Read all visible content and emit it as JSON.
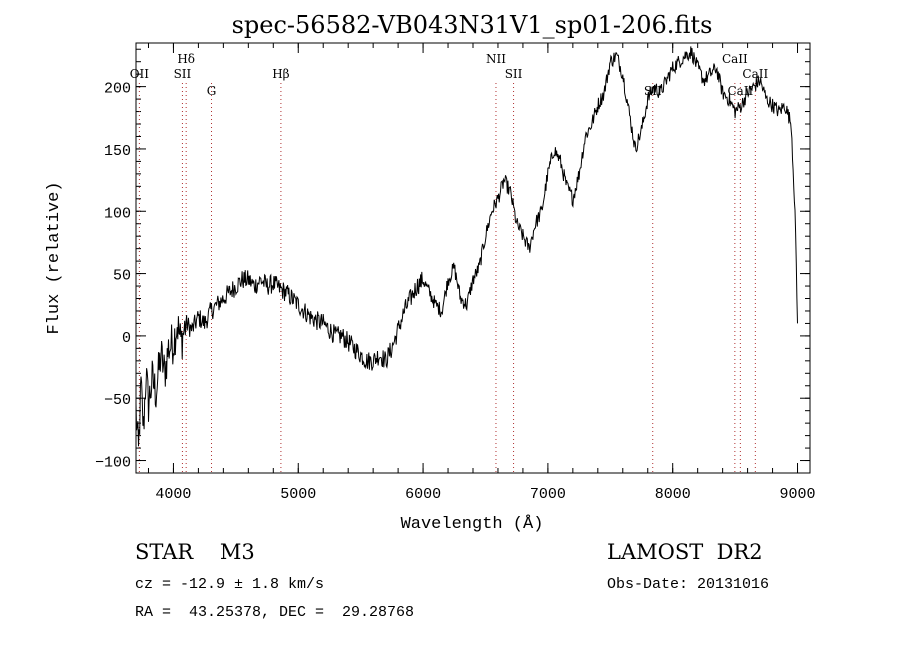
{
  "chart_data": {
    "type": "line",
    "title": "spec-56582-VB043N31V1_sp01-206.fits",
    "xlabel": "Wavelength (Å)",
    "ylabel": "Flux (relative)",
    "xlim": [
      3700,
      9100
    ],
    "ylim": [
      -110,
      235
    ],
    "x_ticks": [
      4000,
      5000,
      6000,
      7000,
      8000,
      9000
    ],
    "y_ticks": [
      -100,
      -50,
      0,
      50,
      100,
      150,
      200
    ],
    "grid": false,
    "line_color": "#000000",
    "marker_color": "#b03030",
    "series": [
      {
        "x": [
          3700,
          3720,
          3740,
          3760,
          3780,
          3800,
          3830,
          3860,
          3900,
          3930,
          3960,
          4000,
          4030,
          4060,
          4100,
          4150,
          4200,
          4250,
          4300,
          4350,
          4400,
          4450,
          4500,
          4550,
          4600,
          4650,
          4700,
          4750,
          4800,
          4850,
          4900,
          4950,
          5000,
          5050,
          5100,
          5150,
          5200,
          5250,
          5300,
          5350,
          5400,
          5450,
          5500,
          5550,
          5600,
          5650,
          5700,
          5750,
          5800,
          5850,
          5900,
          5950,
          6000,
          6050,
          6100,
          6150,
          6200,
          6250,
          6300,
          6350,
          6400,
          6450,
          6500,
          6550,
          6600,
          6650,
          6700,
          6750,
          6800,
          6850,
          6900,
          6950,
          7000,
          7050,
          7100,
          7150,
          7200,
          7250,
          7300,
          7350,
          7400,
          7450,
          7500,
          7550,
          7600,
          7650,
          7700,
          7750,
          7800,
          7850,
          7900,
          7950,
          8000,
          8050,
          8100,
          8150,
          8200,
          8250,
          8300,
          8350,
          8400,
          8450,
          8500,
          8550,
          8600,
          8650,
          8700,
          8750,
          8800,
          8850,
          8900,
          8950,
          8980,
          9000
        ],
        "y": [
          -60,
          -95,
          -40,
          -75,
          -30,
          -55,
          -35,
          -45,
          -15,
          -30,
          -10,
          -5,
          10,
          -5,
          10,
          5,
          15,
          10,
          20,
          25,
          30,
          35,
          40,
          45,
          45,
          40,
          45,
          40,
          42,
          38,
          35,
          30,
          25,
          20,
          15,
          12,
          10,
          5,
          0,
          0,
          -5,
          -10,
          -15,
          -20,
          -20,
          -15,
          -20,
          -10,
          5,
          20,
          30,
          40,
          45,
          35,
          25,
          20,
          45,
          55,
          30,
          25,
          45,
          55,
          80,
          100,
          110,
          125,
          115,
          90,
          80,
          70,
          90,
          100,
          130,
          150,
          140,
          120,
          110,
          130,
          160,
          170,
          185,
          195,
          220,
          225,
          210,
          180,
          150,
          165,
          190,
          200,
          195,
          205,
          215,
          220,
          225,
          228,
          215,
          205,
          210,
          215,
          195,
          190,
          180,
          185,
          195,
          200,
          205,
          190,
          185,
          180,
          185,
          170,
          100,
          10
        ]
      }
    ],
    "lines": [
      {
        "label": "OII",
        "x": 3727,
        "row": 1
      },
      {
        "label": "Hδ",
        "x": 4102,
        "row": 0
      },
      {
        "label": "SII",
        "x": 4072,
        "row": 1
      },
      {
        "label": "G",
        "x": 4305,
        "row": 2
      },
      {
        "label": "Hβ",
        "x": 4861,
        "row": 1
      },
      {
        "label": "NII",
        "x": 6584,
        "row": 0
      },
      {
        "label": "SII",
        "x": 6725,
        "row": 1
      },
      {
        "label": "SII",
        "x": 7840,
        "row": 2
      },
      {
        "label": "CaII",
        "x": 8498,
        "row": 0
      },
      {
        "label": "CaII",
        "x": 8542,
        "row": 2
      },
      {
        "label": "CaII",
        "x": 8662,
        "row": 1
      }
    ]
  },
  "info": {
    "object": "STAR    M3",
    "survey": "LAMOST  DR2",
    "cz": "cz = -12.9 ± 1.8 km/s",
    "obs_date": "Obs-Date: 20131016",
    "radec": "RA =  43.25378, DEC =  29.28768"
  }
}
